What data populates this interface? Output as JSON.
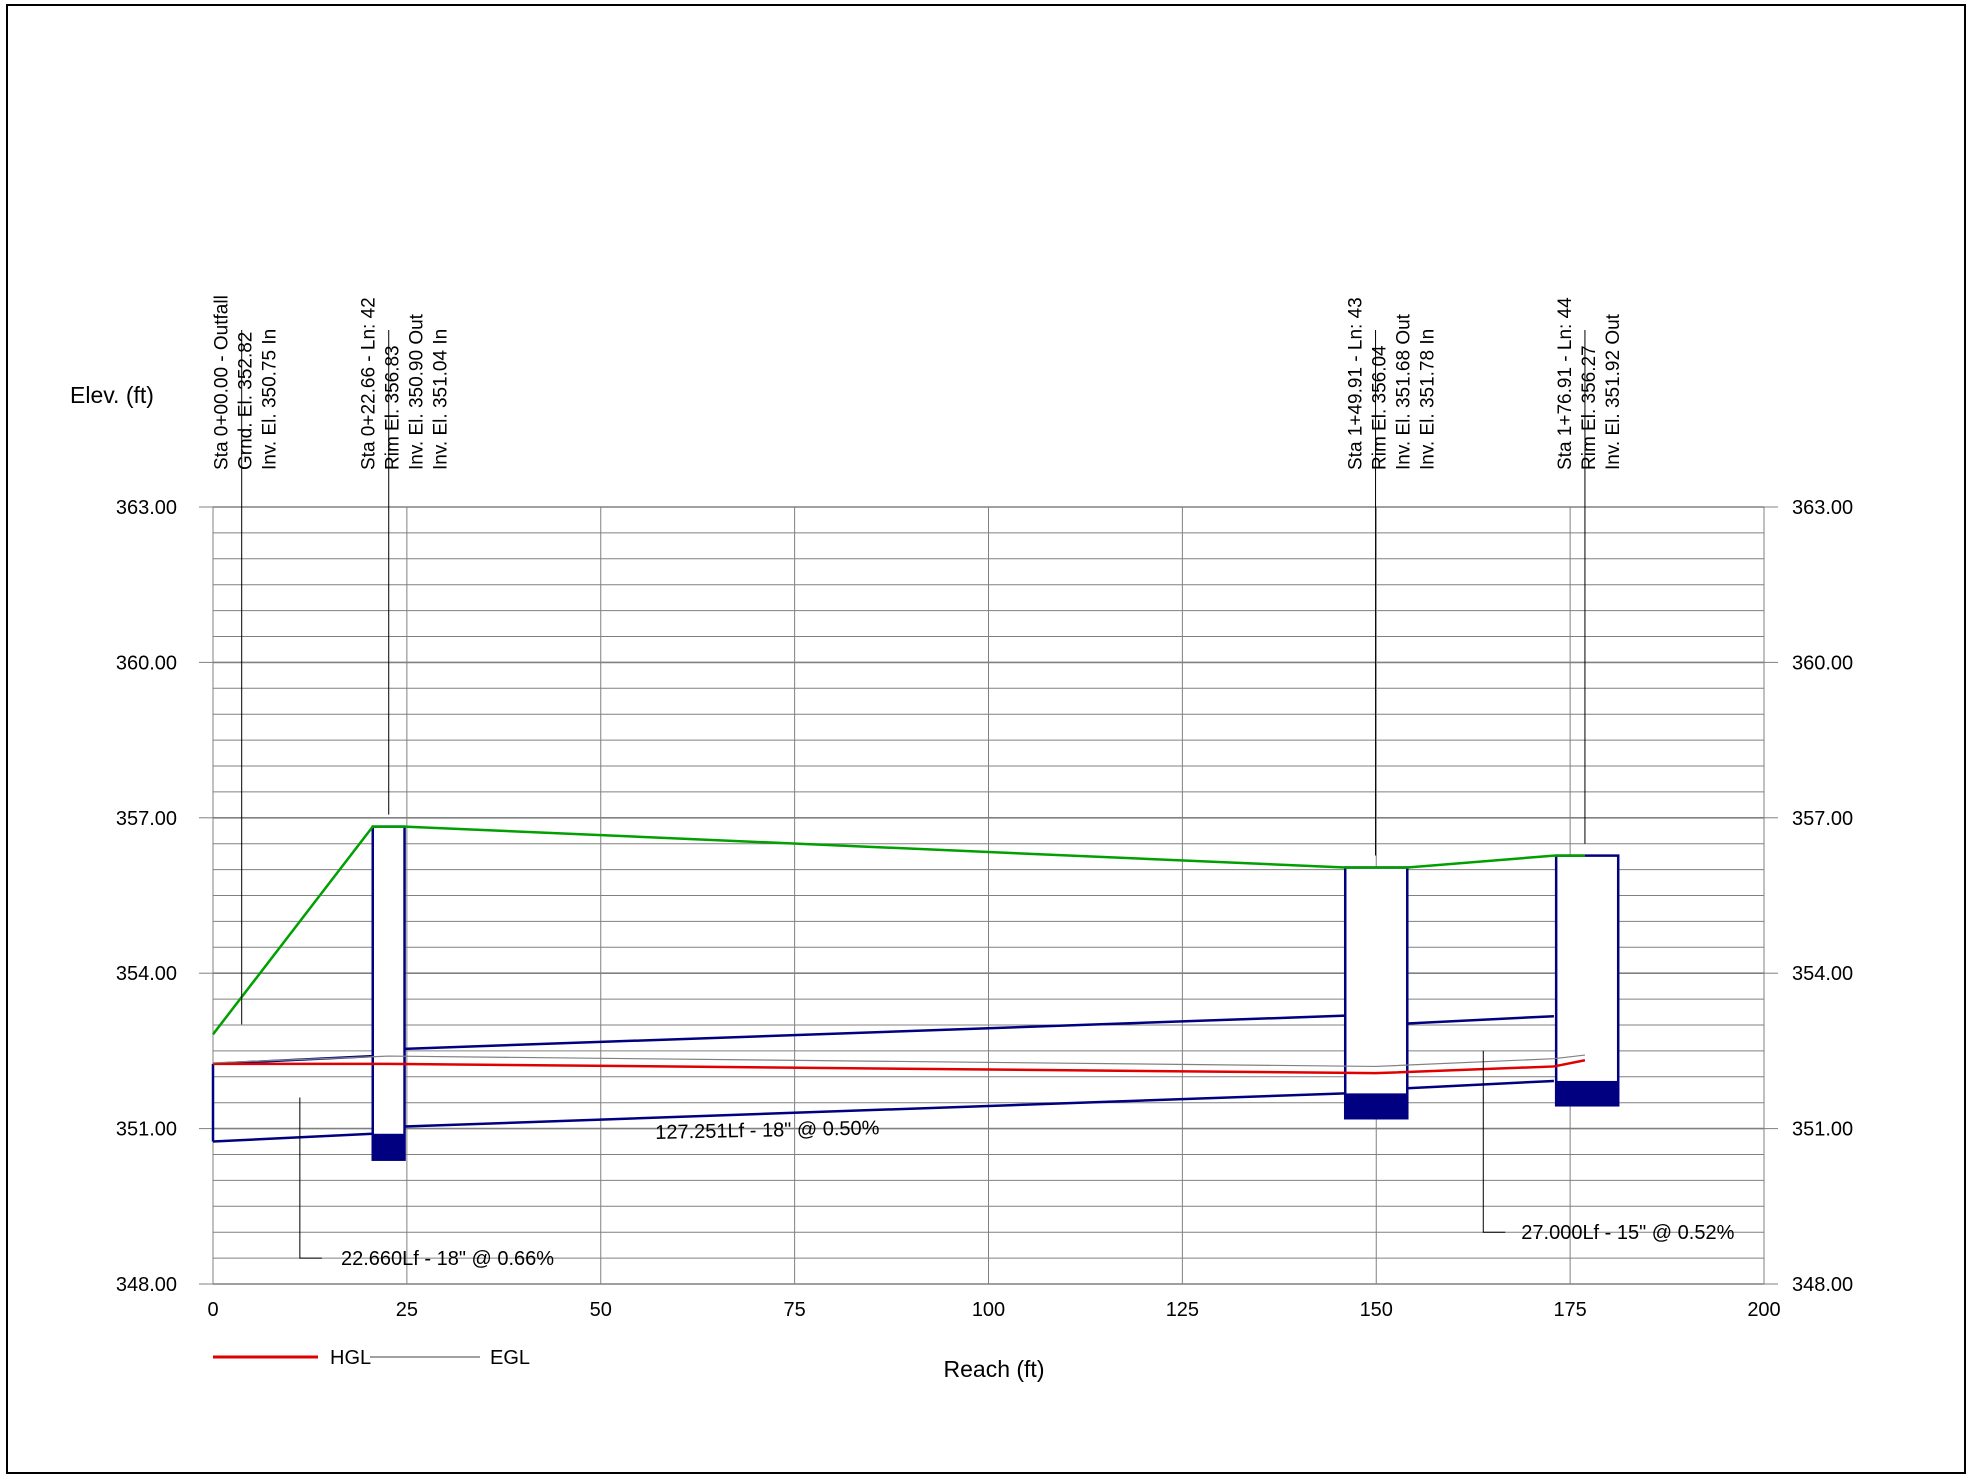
{
  "chart_data": {
    "type": "line",
    "title": "",
    "xlabel": "Reach (ft)",
    "ylabel": "Elev. (ft)",
    "xlim": [
      0,
      200
    ],
    "ylim": [
      348,
      363
    ],
    "x_ticks": [
      0,
      25,
      50,
      75,
      100,
      125,
      150,
      175,
      200
    ],
    "y_ticks": [
      348,
      351,
      354,
      357,
      360,
      363
    ],
    "y_tick_labels": [
      "348.00",
      "351.00",
      "354.00",
      "357.00",
      "360.00",
      "363.00"
    ],
    "grid": true,
    "legend_position": "bottom-left",
    "legend": [
      "HGL",
      "EGL"
    ],
    "colors": {
      "hgl": "#e00000",
      "egl": "#808080",
      "ground": "#00a000",
      "pipe": "#000080",
      "structure": "#000080",
      "grid": "#808080",
      "leader": "#000000"
    },
    "series": [
      {
        "name": "HGL",
        "x": [
          0,
          22.66,
          149.91,
          172.91,
          176.91
        ],
        "y": [
          352.25,
          352.25,
          352.07,
          352.2,
          352.32
        ]
      },
      {
        "name": "EGL",
        "x": [
          0,
          22.66,
          149.91,
          172.91,
          176.91
        ],
        "y": [
          352.27,
          352.4,
          352.2,
          352.35,
          352.42
        ]
      }
    ],
    "ground_line": {
      "x": [
        0,
        20.6,
        24.7,
        146,
        149.91,
        154,
        172.91,
        176.91
      ],
      "y": [
        352.82,
        356.83,
        356.83,
        356.04,
        356.04,
        356.04,
        356.27,
        356.27
      ]
    },
    "pipes": [
      {
        "label": "22.660Lf - 18\" @ 0.66%",
        "x": [
          0,
          20.6
        ],
        "invert": [
          350.75,
          350.9
        ],
        "crown": [
          352.25,
          352.4
        ]
      },
      {
        "label": "127.251Lf - 18\" @ 0.50%",
        "x": [
          24.7,
          146
        ],
        "invert": [
          351.04,
          351.68
        ],
        "crown": [
          352.54,
          353.18
        ]
      },
      {
        "label": "27.000Lf - 15\" @ 0.52%",
        "x": [
          154,
          172.91
        ],
        "invert": [
          351.78,
          351.92
        ],
        "crown": [
          353.03,
          353.17
        ]
      }
    ],
    "structures": [
      {
        "x_left": 20.6,
        "x_right": 24.7,
        "rim": 356.83,
        "floor": 350.4,
        "sump_top": 350.9
      },
      {
        "x_left": 146,
        "x_right": 154,
        "rim": 356.04,
        "floor": 351.2,
        "sump_top": 351.68
      },
      {
        "x_left": 173.2,
        "x_right": 181.2,
        "rim": 356.27,
        "floor": 351.45,
        "sump_top": 351.92
      }
    ],
    "stations": [
      {
        "x": 3.7,
        "lines": [
          "Sta 0+00.00 - Outfall",
          "Grnd. El. 352.82",
          "Inv. El. 350.75 In"
        ]
      },
      {
        "x": 22.66,
        "lines": [
          "Sta 0+22.66 - Ln: 42",
          "Rim El. 356.83",
          "Inv. El. 350.90 Out",
          "Inv. El. 351.04 In"
        ]
      },
      {
        "x": 149.91,
        "lines": [
          "Sta 1+49.91 - Ln: 43",
          "Rim El. 356.04",
          "Inv. El. 351.68 Out",
          "Inv. El. 351.78 In"
        ]
      },
      {
        "x": 176.91,
        "lines": [
          "Sta 1+76.91 - Ln: 44",
          "Rim El. 356.27",
          "Inv. El. 351.92 Out"
        ]
      }
    ]
  }
}
